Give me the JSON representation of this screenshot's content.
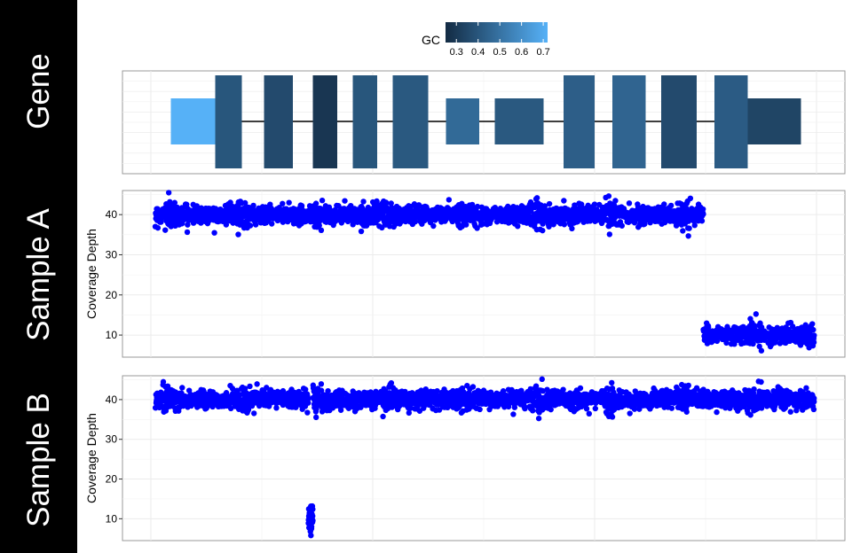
{
  "strip_labels": {
    "gene": "Gene",
    "sample_a": "Sample A",
    "sample_b": "Sample B"
  },
  "legend": {
    "title": "GC",
    "ticks": [
      "0.3",
      "0.4",
      "0.5",
      "0.6",
      "0.7"
    ],
    "tick_values": [
      0.3,
      0.4,
      0.5,
      0.6,
      0.7
    ],
    "range": [
      0.25,
      0.72
    ],
    "color_low": "#132B43",
    "color_high": "#56B1F7"
  },
  "colors": {
    "points": "#0000FF",
    "intron_line": "#000000",
    "panel_border": "#999999",
    "grid": "#EBEBEB",
    "strip": "#000000"
  },
  "chart_data": [
    {
      "type": "gene-model",
      "title": "Gene",
      "xlim": [
        0,
        300
      ],
      "exons": [
        {
          "start": 9,
          "end": 29,
          "gc": 0.72,
          "kind": "utr"
        },
        {
          "start": 29,
          "end": 41,
          "gc": 0.4,
          "kind": "cds"
        },
        {
          "start": 51,
          "end": 64,
          "gc": 0.36,
          "kind": "cds"
        },
        {
          "start": 73,
          "end": 84,
          "gc": 0.29,
          "kind": "cds"
        },
        {
          "start": 91,
          "end": 102,
          "gc": 0.4,
          "kind": "cds"
        },
        {
          "start": 109,
          "end": 125,
          "gc": 0.41,
          "kind": "cds"
        },
        {
          "start": 133,
          "end": 148,
          "gc": 0.47,
          "kind": "utr"
        },
        {
          "start": 155,
          "end": 177,
          "gc": 0.41,
          "kind": "utr"
        },
        {
          "start": 186,
          "end": 200,
          "gc": 0.43,
          "kind": "cds"
        },
        {
          "start": 208,
          "end": 223,
          "gc": 0.45,
          "kind": "cds"
        },
        {
          "start": 230,
          "end": 246,
          "gc": 0.36,
          "kind": "cds"
        },
        {
          "start": 254,
          "end": 269,
          "gc": 0.42,
          "kind": "cds"
        },
        {
          "start": 269,
          "end": 293,
          "gc": 0.34,
          "kind": "utr"
        }
      ]
    },
    {
      "type": "scatter",
      "title": "Sample A",
      "ylabel": "Coverage Depth",
      "xlim": [
        0,
        300
      ],
      "ylim": [
        4.5,
        46
      ],
      "yticks": [
        10,
        20,
        30,
        40
      ],
      "series": [
        {
          "values_desc": "depth",
          "segments": [
            {
              "x_start": 2,
              "x_end": 249,
              "mean": 40,
              "spread": 1.8
            },
            {
              "x_start": 249,
              "x_end": 299,
              "mean": 10,
              "spread": 1.8
            }
          ]
        }
      ]
    },
    {
      "type": "scatter",
      "title": "Sample B",
      "ylabel": "Coverage Depth",
      "xlim": [
        0,
        300
      ],
      "ylim": [
        4.5,
        46
      ],
      "yticks": [
        10,
        20,
        30,
        40
      ],
      "series": [
        {
          "values_desc": "depth",
          "segments": [
            {
              "x_start": 2,
              "x_end": 71,
              "mean": 40,
              "spread": 1.8
            },
            {
              "x_start": 71,
              "x_end": 73,
              "mean": 10,
              "spread": 1.8
            },
            {
              "x_start": 73,
              "x_end": 299,
              "mean": 40,
              "spread": 1.8
            }
          ]
        }
      ]
    }
  ]
}
